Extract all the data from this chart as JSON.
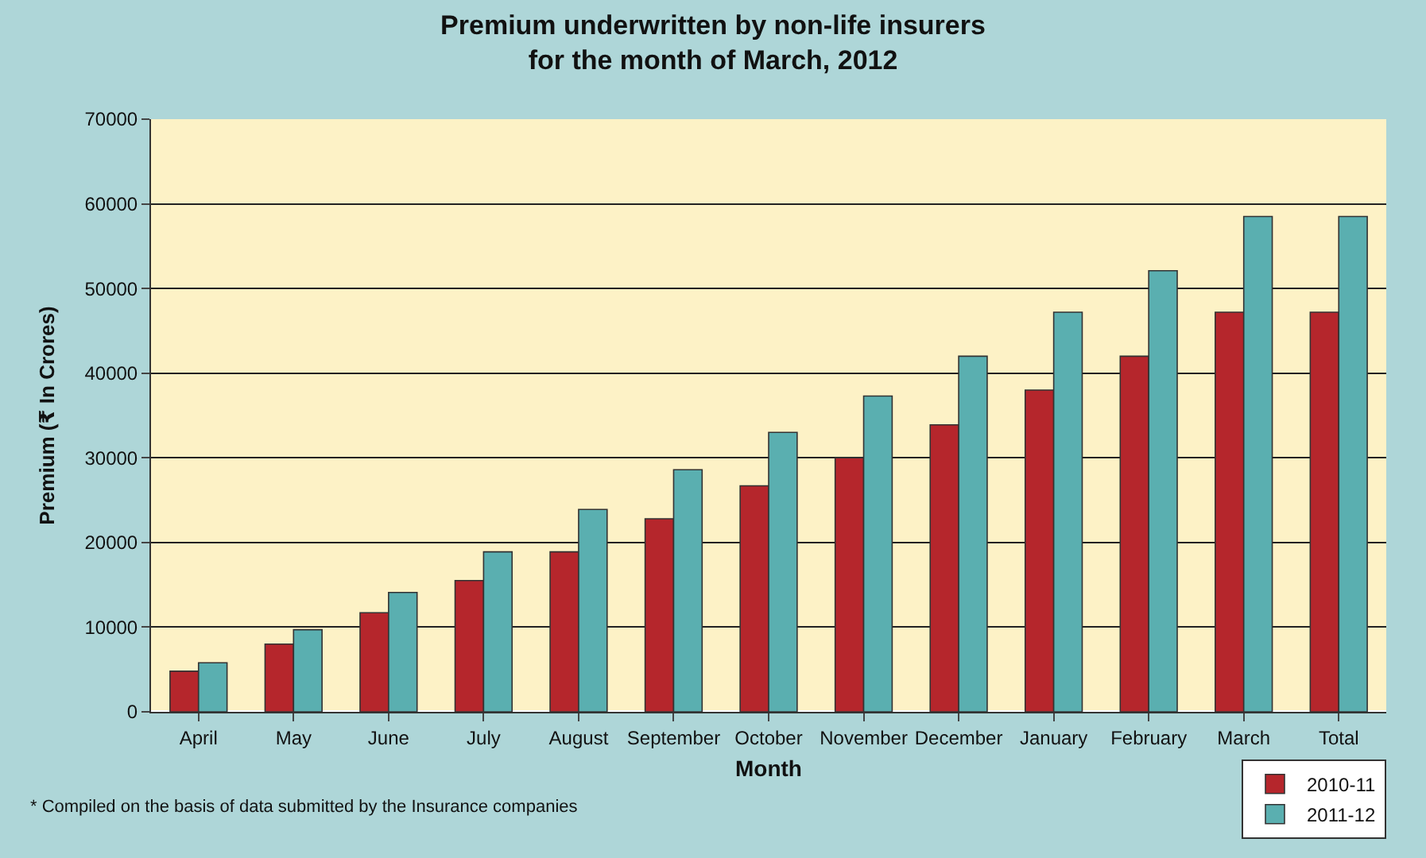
{
  "chart_data": {
    "type": "bar",
    "title": "Premium underwritten by non-life insurers\nfor the month of March, 2012",
    "xlabel": "Month",
    "ylabel": "Premium (₹ In Crores)",
    "categories": [
      "April",
      "May",
      "June",
      "July",
      "August",
      "September",
      "October",
      "November",
      "December",
      "January",
      "February",
      "March",
      "Total"
    ],
    "series": [
      {
        "name": "2010-11",
        "color": "#b5262c",
        "values": [
          4800,
          8000,
          11700,
          15500,
          18900,
          22800,
          26700,
          30000,
          33900,
          38000,
          42000,
          47200,
          47200
        ]
      },
      {
        "name": "2011-12",
        "color": "#5aafb0",
        "values": [
          5800,
          9700,
          14100,
          18900,
          23900,
          28600,
          33000,
          37300,
          42000,
          47200,
          52100,
          58500,
          58500
        ]
      }
    ],
    "ylim": [
      0,
      70000
    ],
    "yticks": [
      0,
      10000,
      20000,
      30000,
      40000,
      50000,
      60000,
      70000
    ],
    "grid": "y",
    "legend": "bottom right",
    "annotations": [
      "* Compiled on the basis of data submitted by the Insurance companies"
    ]
  }
}
